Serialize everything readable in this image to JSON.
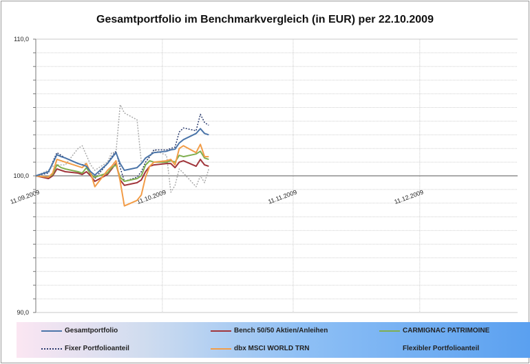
{
  "chart_data": {
    "type": "line",
    "title": "Gesamtportfolio  im Benchmarkvergleich (in EUR) per 22.10.2009",
    "ylim": [
      90,
      110
    ],
    "y_ticks": [
      "90,0",
      "100,0",
      "110,0"
    ],
    "x_ticks": [
      "11.09.2009",
      "11.10.2009",
      "11.11.2009",
      "11.12.2009"
    ],
    "x_range": [
      "2009-09-11",
      "2009-12-31"
    ],
    "grid": true,
    "legend_placement": "bottom",
    "x": [
      "2009-09-11",
      "2009-09-14",
      "2009-09-15",
      "2009-09-16",
      "2009-09-17",
      "2009-09-18",
      "2009-09-21",
      "2009-09-22",
      "2009-09-23",
      "2009-09-24",
      "2009-09-25",
      "2009-09-28",
      "2009-09-29",
      "2009-09-30",
      "2009-10-01",
      "2009-10-02",
      "2009-10-05",
      "2009-10-06",
      "2009-10-07",
      "2009-10-08",
      "2009-10-09",
      "2009-10-12",
      "2009-10-13",
      "2009-10-14",
      "2009-10-15",
      "2009-10-16",
      "2009-10-19",
      "2009-10-20",
      "2009-10-21",
      "2009-10-22"
    ],
    "series": [
      {
        "name": "Gesamtportfolio",
        "color": "#4a74a8",
        "style": "solid",
        "values": [
          100.0,
          100.3,
          100.9,
          101.55,
          101.4,
          101.3,
          100.9,
          100.8,
          100.7,
          100.3,
          100.05,
          100.9,
          101.3,
          101.7,
          100.9,
          100.4,
          100.6,
          100.9,
          101.3,
          101.5,
          101.7,
          101.8,
          101.9,
          101.95,
          102.4,
          102.65,
          103.1,
          103.45,
          103.1,
          103.0
        ]
      },
      {
        "name": "Bench 50/50 Aktien/Anleihen",
        "color": "#a0343a",
        "style": "solid",
        "values": [
          100.0,
          99.8,
          100.0,
          100.5,
          100.4,
          100.3,
          100.2,
          100.1,
          100.3,
          100.0,
          99.6,
          100.1,
          100.5,
          100.9,
          99.7,
          99.3,
          99.5,
          99.7,
          100.3,
          100.7,
          100.8,
          100.9,
          100.9,
          100.6,
          101.0,
          101.1,
          100.7,
          101.2,
          100.8,
          100.7
        ]
      },
      {
        "name": "CARMIGNAC PATRIMOINE",
        "color": "#7fae4e",
        "style": "solid",
        "values": [
          100.0,
          99.9,
          100.1,
          100.8,
          100.6,
          100.5,
          100.3,
          100.2,
          100.6,
          100.1,
          99.9,
          100.2,
          100.6,
          100.8,
          99.9,
          99.6,
          99.8,
          100.0,
          100.8,
          101.1,
          101.0,
          101.0,
          101.1,
          101.0,
          101.5,
          101.4,
          101.6,
          101.8,
          101.3,
          101.2
        ]
      },
      {
        "name": "Fixer Portfolioanteil",
        "color": "#27386b",
        "style": "dotted",
        "values": [
          100.0,
          100.2,
          101.0,
          101.7,
          101.5,
          101.3,
          100.9,
          100.8,
          100.9,
          100.2,
          99.8,
          100.9,
          101.4,
          101.8,
          100.6,
          99.6,
          99.9,
          100.3,
          101.0,
          101.4,
          101.9,
          101.9,
          102.0,
          102.1,
          103.2,
          103.5,
          103.3,
          104.5,
          103.9,
          103.7
        ]
      },
      {
        "name": "dbx MSCI  WORLD TRN",
        "color": "#f29c47",
        "style": "solid",
        "values": [
          100.0,
          99.9,
          100.2,
          101.2,
          101.1,
          101.0,
          100.7,
          100.6,
          100.9,
          100.2,
          99.2,
          100.4,
          100.7,
          101.1,
          99.6,
          97.8,
          98.2,
          98.6,
          99.9,
          100.7,
          101.0,
          101.1,
          101.2,
          100.8,
          102.0,
          102.2,
          101.7,
          102.3,
          101.4,
          101.4
        ]
      },
      {
        "name": "Flexibler Portfolioanteil",
        "color": "#a8a8a8",
        "style": "dotted",
        "values": [
          100.0,
          100.4,
          100.7,
          100.8,
          100.8,
          100.8,
          102.0,
          102.2,
          101.5,
          100.8,
          100.4,
          101.0,
          101.7,
          101.7,
          105.2,
          104.6,
          104.1,
          101.0,
          101.0,
          101.4,
          101.9,
          101.5,
          98.8,
          99.3,
          100.5,
          100.2,
          99.2,
          100.0,
          99.5,
          100.5
        ]
      }
    ]
  }
}
